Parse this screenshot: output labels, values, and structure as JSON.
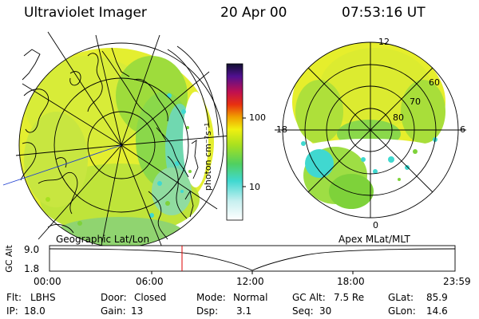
{
  "header": {
    "instrument": "Ultraviolet Imager",
    "date": "20 Apr 00",
    "time": "07:53:16 UT"
  },
  "colorbar": {
    "unit_label": "photon cm⁻²s⁻¹",
    "ticks": [
      "100",
      "10"
    ]
  },
  "left_map": {
    "label": "Geographic Lat/Lon"
  },
  "right_map": {
    "label": "Apex MLat/MLT",
    "mlt_labels": {
      "top": "12",
      "left": "18",
      "right": "6",
      "bottom": "0"
    },
    "lat_labels": [
      "60",
      "70",
      "80"
    ]
  },
  "altitude_panel": {
    "axis_label": "GC Alt",
    "y_ticks": [
      "9.0",
      "1.8"
    ],
    "x_ticks": [
      "00:00",
      "06:00",
      "12:00",
      "18:00",
      "23:59"
    ],
    "marker_time": "07:53"
  },
  "status": {
    "row1": {
      "flt_label": "Flt:",
      "flt_value": "LBHS",
      "door_label": "Door:",
      "door_value": "Closed",
      "mode_label": "Mode:",
      "mode_value": "Normal",
      "gcalt_label": "GC Alt:",
      "gcalt_value": "7.5 Re",
      "glat_label": "GLat:",
      "glat_value": "85.9"
    },
    "row2": {
      "ip_label": "IP:",
      "ip_value": "18.0",
      "gain_label": "Gain:",
      "gain_value": "13",
      "dsp_label": "Dsp:",
      "dsp_value": "3.1",
      "seq_label": "Seq:",
      "seq_value": "30",
      "glon_label": "GLon:",
      "glon_value": "14.6"
    }
  },
  "colors": {
    "aurora_yellow": "#e8f020",
    "aurora_green": "#7ed23a",
    "aurora_cyan": "#40d8d0",
    "marker_red": "#dd0000"
  }
}
